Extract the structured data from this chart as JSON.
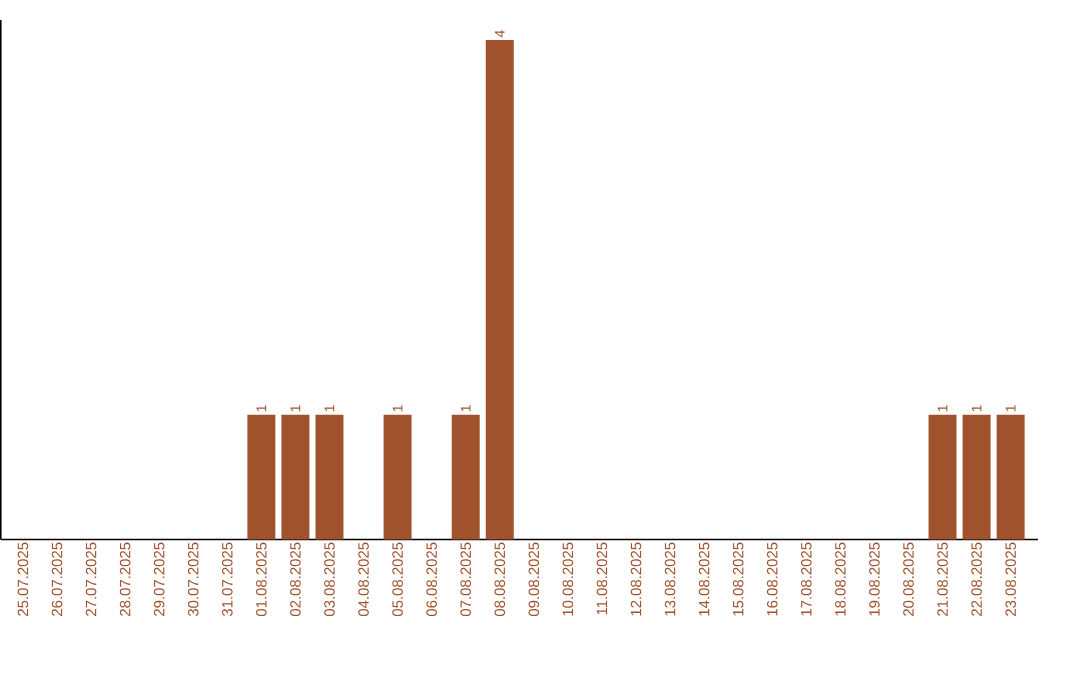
{
  "chart_data": {
    "type": "bar",
    "categories": [
      "25.07.2025",
      "26.07.2025",
      "27.07.2025",
      "28.07.2025",
      "29.07.2025",
      "30.07.2025",
      "31.07.2025",
      "01.08.2025",
      "02.08.2025",
      "03.08.2025",
      "04.08.2025",
      "05.08.2025",
      "06.08.2025",
      "07.08.2025",
      "08.08.2025",
      "09.08.2025",
      "10.08.2025",
      "11.08.2025",
      "12.08.2025",
      "13.08.2025",
      "14.08.2025",
      "15.08.2025",
      "16.08.2025",
      "17.08.2025",
      "18.08.2025",
      "19.08.2025",
      "20.08.2025",
      "21.08.2025",
      "22.08.2025",
      "23.08.2025"
    ],
    "values": [
      0,
      0,
      0,
      0,
      0,
      0,
      0,
      1,
      1,
      1,
      0,
      1,
      0,
      1,
      4,
      0,
      0,
      0,
      0,
      0,
      0,
      0,
      0,
      0,
      0,
      0,
      0,
      1,
      1,
      1
    ],
    "value_labels": [
      null,
      null,
      null,
      null,
      null,
      null,
      null,
      "1",
      "1",
      "1",
      null,
      "1",
      null,
      "1",
      "4",
      null,
      null,
      null,
      null,
      null,
      null,
      null,
      null,
      null,
      null,
      null,
      null,
      "1",
      "1",
      "1"
    ],
    "color": "#a0522d"
  }
}
